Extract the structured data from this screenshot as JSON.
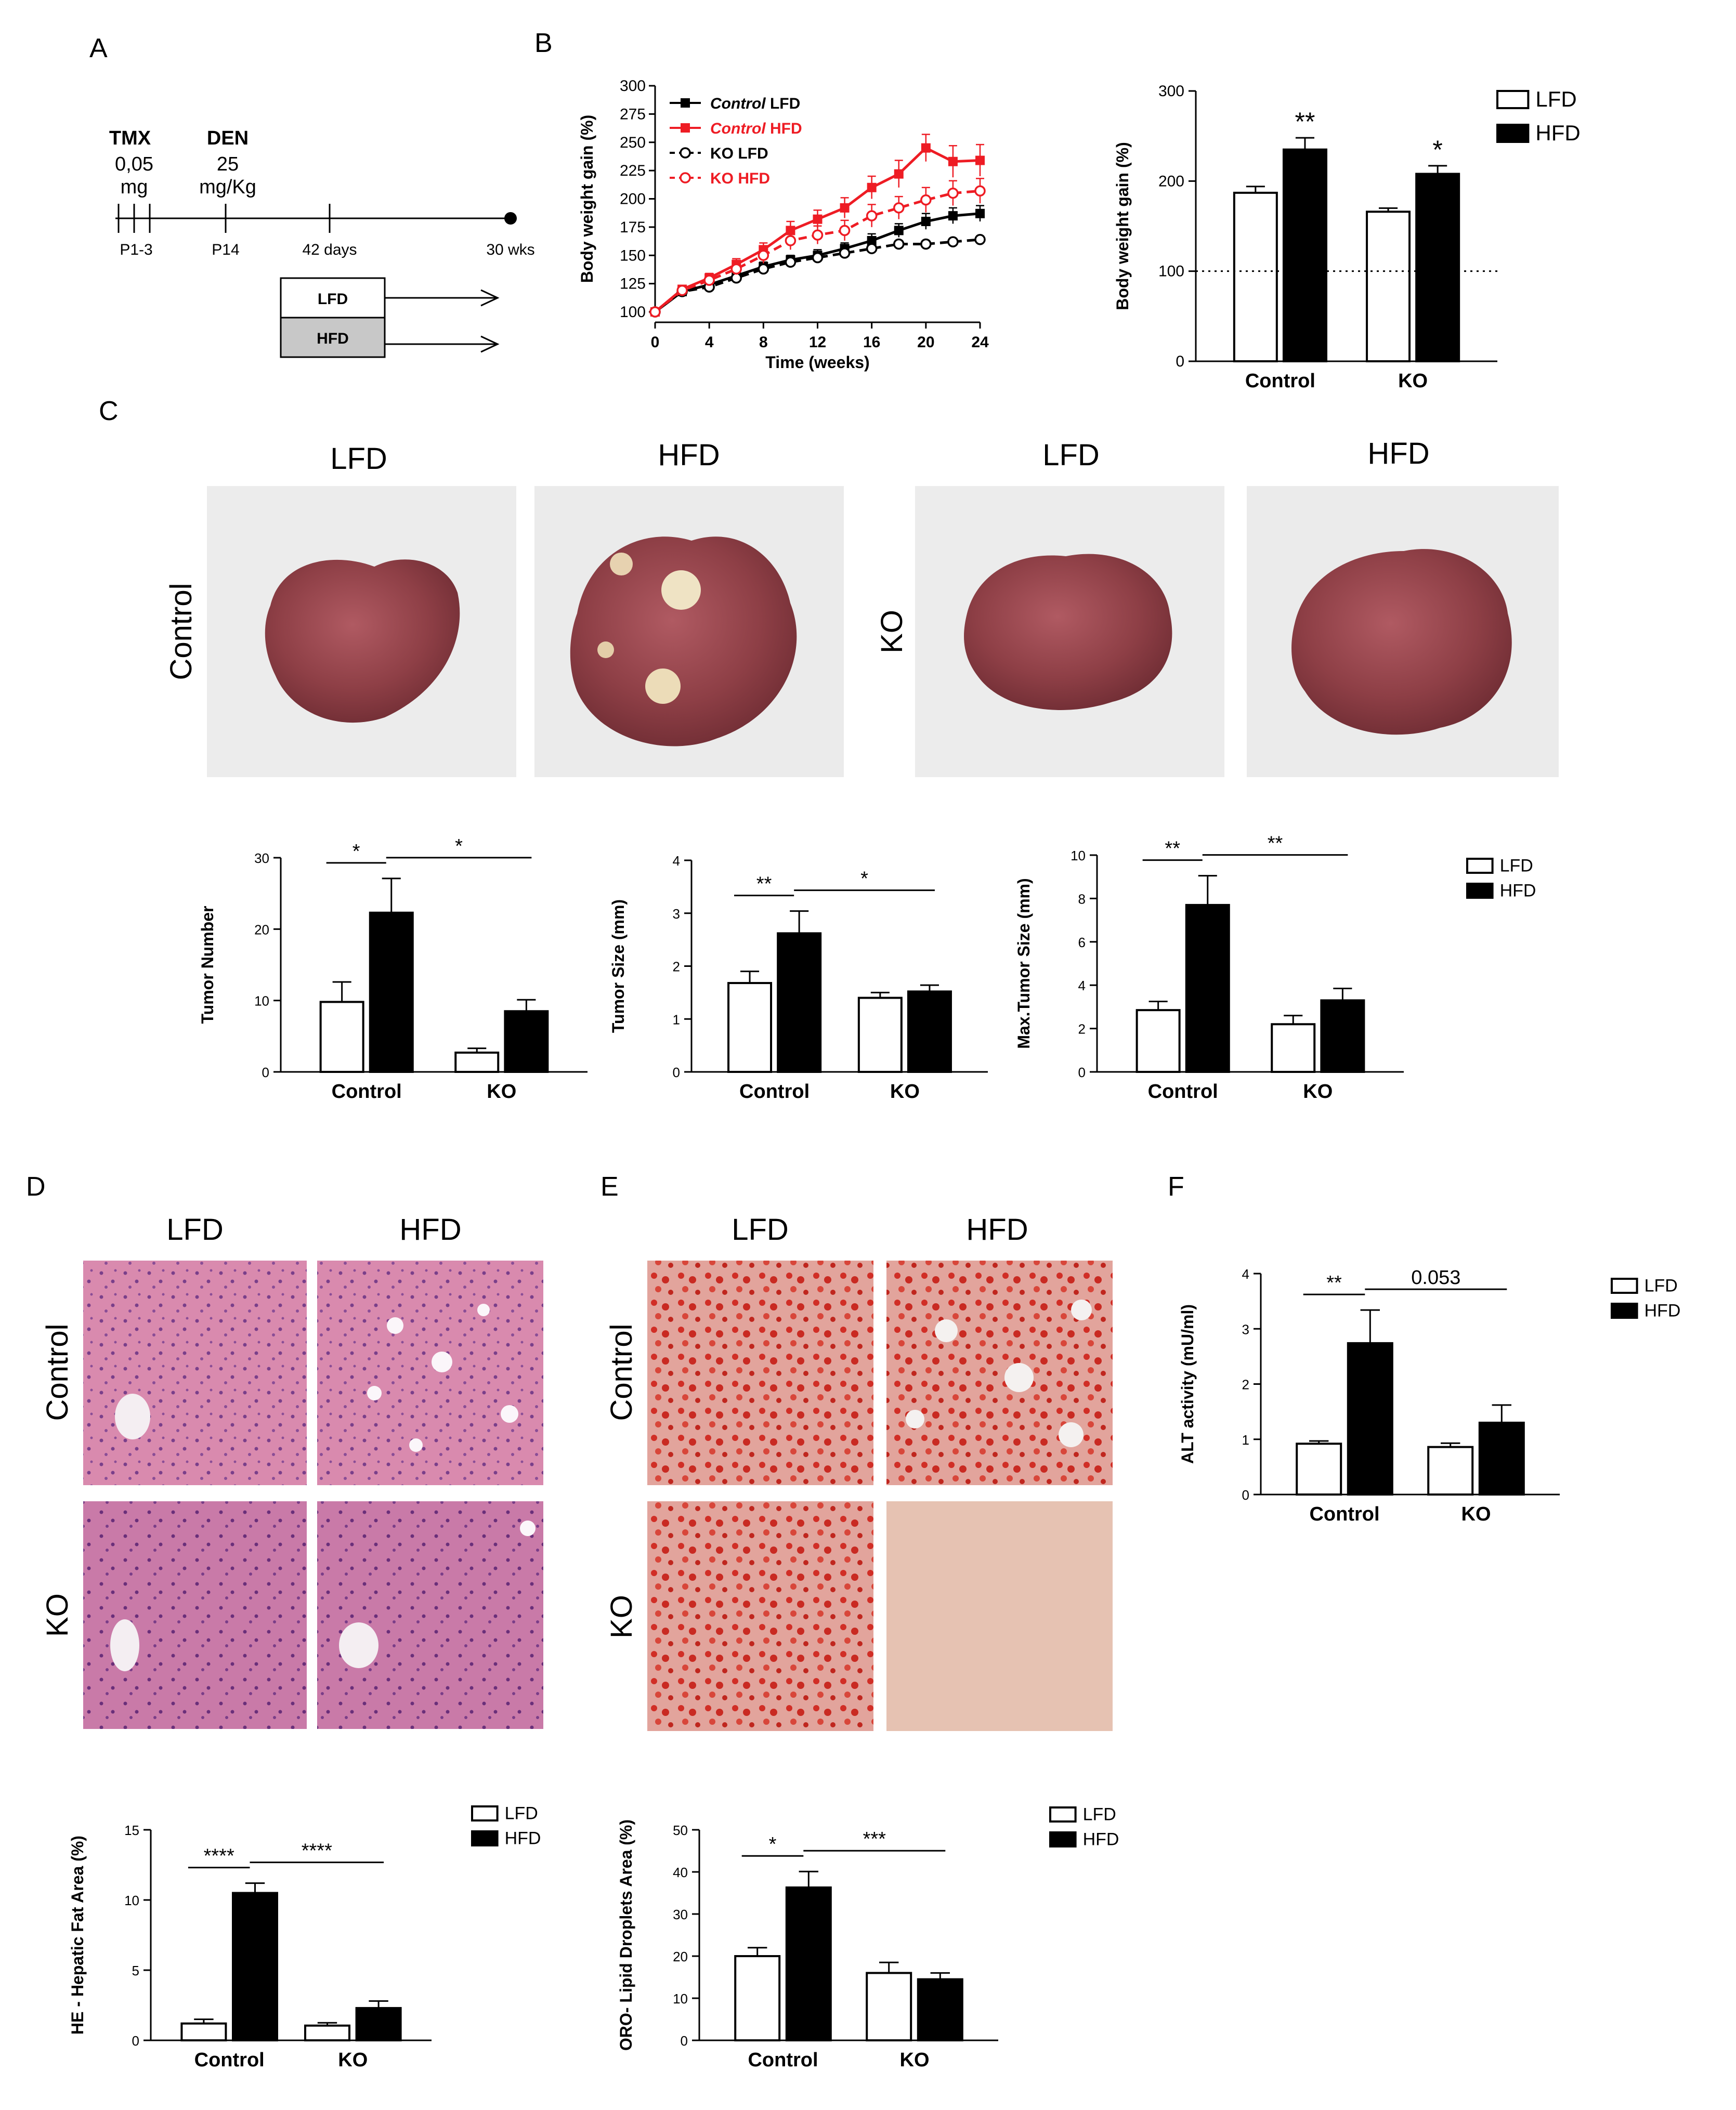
{
  "panel_labels": {
    "A": "A",
    "B": "B",
    "C": "C",
    "D": "D",
    "E": "E",
    "F": "F"
  },
  "timeline": {
    "tmx": "TMX",
    "tmx_dose": "0,05",
    "tmx_unit": "mg",
    "den": "DEN",
    "den_dose": "25",
    "den_unit": "mg/Kg",
    "ticks": [
      "P1-3",
      "P14",
      "42 days",
      "30 wks"
    ],
    "boxes": [
      "LFD",
      "HFD"
    ]
  },
  "photo_labels": {
    "c_cols": [
      "LFD",
      "HFD",
      "LFD",
      "HFD"
    ],
    "c_rows": [
      "Control",
      "KO"
    ],
    "d_cols": [
      "LFD",
      "HFD"
    ],
    "d_rows": [
      "Control",
      "KO"
    ],
    "e_cols": [
      "LFD",
      "HFD"
    ],
    "e_rows": [
      "Control",
      "KO"
    ]
  },
  "colors": {
    "red": "#ee1c24",
    "black": "#000000",
    "white": "#ffffff"
  },
  "chart_data": [
    {
      "id": "bw_line",
      "type": "line",
      "ylabel": "Body weight gain (%)",
      "xlabel": "Time (weeks)",
      "ylim": [
        100,
        300
      ],
      "yticks": [
        100,
        125,
        150,
        175,
        200,
        225,
        250,
        275,
        300
      ],
      "xlim": [
        0,
        24
      ],
      "xticks": [
        0,
        4,
        8,
        12,
        16,
        20,
        24
      ],
      "x": [
        0,
        2,
        4,
        6,
        8,
        10,
        12,
        14,
        16,
        18,
        20,
        22,
        24
      ],
      "legend_position": "top-left",
      "series": [
        {
          "name_prefix": "Control",
          "name_suffix": " LFD",
          "style": "solid",
          "marker": "square-filled",
          "color": "#000000",
          "values": [
            100,
            118,
            124,
            132,
            140,
            146,
            150,
            156,
            163,
            172,
            180,
            185,
            187
          ],
          "err": [
            2,
            3,
            3,
            3,
            4,
            4,
            5,
            5,
            6,
            6,
            7,
            7,
            7
          ]
        },
        {
          "name_prefix": "Control",
          "name_suffix": " HFD",
          "style": "solid",
          "marker": "square-filled",
          "color": "#ee1c24",
          "values": [
            100,
            120,
            130,
            142,
            155,
            172,
            182,
            192,
            210,
            222,
            245,
            233,
            234
          ],
          "err": [
            2,
            3,
            4,
            5,
            6,
            8,
            8,
            9,
            10,
            12,
            12,
            14,
            14
          ]
        },
        {
          "name_prefix": "",
          "name_suffix": "KO LFD",
          "style": "dashed",
          "marker": "circle-open",
          "color": "#000000",
          "values": [
            100,
            118,
            122,
            130,
            138,
            144,
            148,
            152,
            156,
            160,
            160,
            162,
            164
          ],
          "err": [
            2,
            2,
            3,
            3,
            3,
            3,
            3,
            3,
            3,
            3,
            3,
            3,
            3
          ]
        },
        {
          "name_prefix": "",
          "name_suffix": "KO HFD",
          "style": "dashed",
          "marker": "circle-open",
          "color": "#ee1c24",
          "values": [
            100,
            119,
            128,
            138,
            150,
            163,
            168,
            172,
            185,
            192,
            199,
            205,
            207
          ],
          "err": [
            2,
            3,
            4,
            5,
            7,
            8,
            8,
            9,
            10,
            10,
            11,
            11,
            11
          ]
        }
      ]
    },
    {
      "id": "bw_bar",
      "type": "bar",
      "ylabel": "Body weight gain (%)",
      "ylim": [
        0,
        300
      ],
      "yticks": [
        0,
        100,
        200,
        300
      ],
      "categories": [
        "Control",
        "KO"
      ],
      "series": [
        {
          "name": "LFD",
          "values": [
            187,
            166
          ],
          "err": [
            7,
            4
          ]
        },
        {
          "name": "HFD",
          "values": [
            235,
            208
          ],
          "err": [
            13,
            9
          ]
        }
      ],
      "reference_line": 100,
      "stars": [
        "**",
        "*"
      ],
      "legend_position": "top-right"
    },
    {
      "id": "tumor_number",
      "type": "bar",
      "ylabel": "Tumor Number",
      "ylim": [
        0,
        30
      ],
      "yticks": [
        0,
        10,
        20,
        30
      ],
      "categories": [
        "Control",
        "KO"
      ],
      "series": [
        {
          "name": "LFD",
          "values": [
            9.8,
            2.7
          ],
          "err": [
            2.8,
            0.6
          ]
        },
        {
          "name": "HFD",
          "values": [
            22.3,
            8.5
          ],
          "err": [
            4.8,
            1.6
          ]
        }
      ],
      "brackets": [
        {
          "label": "*",
          "from": "Control.LFD",
          "to": "Control.HFD"
        },
        {
          "label": "*",
          "from": "Control.HFD",
          "to": "KO.HFD"
        }
      ]
    },
    {
      "id": "tumor_size",
      "type": "bar",
      "ylabel": "Tumor Size (mm)",
      "ylim": [
        0,
        4
      ],
      "yticks": [
        0,
        1,
        2,
        3,
        4
      ],
      "categories": [
        "Control",
        "KO"
      ],
      "series": [
        {
          "name": "LFD",
          "values": [
            1.68,
            1.4
          ],
          "err": [
            0.22,
            0.1
          ]
        },
        {
          "name": "HFD",
          "values": [
            2.62,
            1.52
          ],
          "err": [
            0.42,
            0.12
          ]
        }
      ],
      "brackets": [
        {
          "label": "**",
          "from": "Control.LFD",
          "to": "Control.HFD"
        },
        {
          "label": "*",
          "from": "Control.HFD",
          "to": "KO.HFD"
        }
      ]
    },
    {
      "id": "max_tumor_size",
      "type": "bar",
      "ylabel": "Max.Tumor Size (mm)",
      "ylim": [
        0,
        10
      ],
      "yticks": [
        0,
        2,
        4,
        6,
        8,
        10
      ],
      "categories": [
        "Control",
        "KO"
      ],
      "series": [
        {
          "name": "LFD",
          "values": [
            2.85,
            2.2
          ],
          "err": [
            0.4,
            0.4
          ]
        },
        {
          "name": "HFD",
          "values": [
            7.7,
            3.3
          ],
          "err": [
            1.35,
            0.55
          ]
        }
      ],
      "brackets": [
        {
          "label": "**",
          "from": "Control.LFD",
          "to": "Control.HFD"
        },
        {
          "label": "**",
          "from": "Control.HFD",
          "to": "KO.HFD"
        }
      ],
      "legend_position": "right"
    },
    {
      "id": "he_fat",
      "type": "bar",
      "ylabel": "HE - Hepatic Fat Area (%)",
      "ylim": [
        0,
        15
      ],
      "yticks": [
        0,
        5,
        10,
        15
      ],
      "categories": [
        "Control",
        "KO"
      ],
      "series": [
        {
          "name": "LFD",
          "values": [
            1.2,
            1.05
          ],
          "err": [
            0.3,
            0.2
          ]
        },
        {
          "name": "HFD",
          "values": [
            10.5,
            2.3
          ],
          "err": [
            0.7,
            0.5
          ]
        }
      ],
      "brackets": [
        {
          "label": "****",
          "from": "Control.LFD",
          "to": "Control.HFD"
        },
        {
          "label": "****",
          "from": "Control.HFD",
          "to": "KO.HFD"
        }
      ],
      "legend_position": "right"
    },
    {
      "id": "oro_lipid",
      "type": "bar",
      "ylabel": "ORO- Lipid Droplets Area (%)",
      "ylim": [
        0,
        50
      ],
      "yticks": [
        0,
        10,
        20,
        30,
        40,
        50
      ],
      "categories": [
        "Control",
        "KO"
      ],
      "series": [
        {
          "name": "LFD",
          "values": [
            20,
            16
          ],
          "err": [
            2,
            2.5
          ]
        },
        {
          "name": "HFD",
          "values": [
            36.3,
            14.5
          ],
          "err": [
            3.8,
            1.5
          ]
        }
      ],
      "brackets": [
        {
          "label": "*",
          "from": "Control.LFD",
          "to": "Control.HFD"
        },
        {
          "label": "***",
          "from": "Control.HFD",
          "to": "KO.HFD"
        }
      ],
      "legend_position": "right"
    },
    {
      "id": "alt",
      "type": "bar",
      "ylabel": "ALT activity (mU/ml)",
      "ylim": [
        0,
        4
      ],
      "yticks": [
        0,
        1,
        2,
        3,
        4
      ],
      "categories": [
        "Control",
        "KO"
      ],
      "series": [
        {
          "name": "LFD",
          "values": [
            0.92,
            0.86
          ],
          "err": [
            0.05,
            0.07
          ]
        },
        {
          "name": "HFD",
          "values": [
            2.74,
            1.3
          ],
          "err": [
            0.6,
            0.32
          ]
        }
      ],
      "brackets": [
        {
          "label": "**",
          "from": "Control.LFD",
          "to": "Control.HFD"
        },
        {
          "label": "0.053",
          "from": "Control.HFD",
          "to": "KO.HFD"
        }
      ],
      "legend_position": "right"
    }
  ]
}
